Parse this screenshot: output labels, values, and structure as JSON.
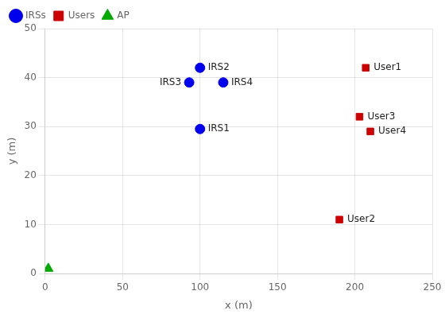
{
  "chart_data": {
    "type": "scatter",
    "xlabel": "x (m)",
    "ylabel": "y (m)",
    "xlim": [
      0,
      250
    ],
    "ylim": [
      0,
      50
    ],
    "xticks": [
      0,
      50,
      100,
      150,
      200,
      250
    ],
    "yticks": [
      0,
      10,
      20,
      30,
      40,
      50
    ],
    "grid": true,
    "legend": "upper left",
    "series": [
      {
        "name": "IRSs",
        "color": "#0000ee",
        "marker": "circle",
        "x": [
          100,
          93,
          115,
          100
        ],
        "y": [
          42,
          39,
          39,
          29.5
        ],
        "labels": [
          "IRS2",
          "IRS3",
          "IRS4",
          "IRS1"
        ]
      },
      {
        "name": "Users",
        "color": "#cc0000",
        "marker": "square",
        "x": [
          207,
          190,
          203,
          210
        ],
        "y": [
          42,
          11,
          32,
          29
        ],
        "labels": [
          "User1",
          "User2",
          "User3",
          "User4"
        ]
      },
      {
        "name": "AP",
        "color": "#00aa00",
        "marker": "triangle",
        "x": [
          2
        ],
        "y": [
          1
        ]
      }
    ]
  }
}
